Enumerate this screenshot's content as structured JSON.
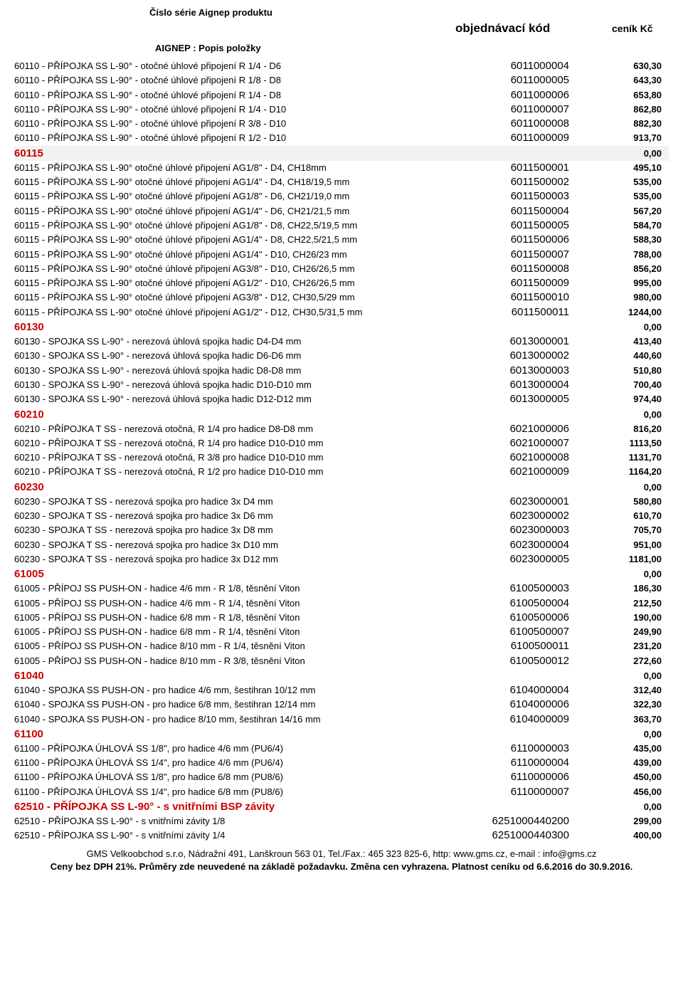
{
  "header": {
    "title1": "Číslo série Aignep produktu",
    "title3": "AIGNEP :  Popis položky",
    "obj_kod": "objednávací kód",
    "cenik": "ceník Kč"
  },
  "rows": [
    {
      "type": "row",
      "desc": "60110 - PŘÍPOJKA SS L-90° - otočné úhlové připojení R 1/4 - D6",
      "code": "6011000004",
      "price": "630,30"
    },
    {
      "type": "row",
      "desc": "60110 - PŘÍPOJKA SS L-90° - otočné úhlové připojení R 1/8 - D8",
      "code": "6011000005",
      "price": "643,30"
    },
    {
      "type": "row",
      "desc": "60110 - PŘÍPOJKA SS L-90° - otočné úhlové připojení R 1/4 - D8",
      "code": "6011000006",
      "price": "653,80"
    },
    {
      "type": "row",
      "desc": "60110 - PŘÍPOJKA SS L-90° - otočné úhlové připojení R 1/4 - D10",
      "code": "6011000007",
      "price": "862,80"
    },
    {
      "type": "row",
      "desc": "60110 - PŘÍPOJKA SS L-90° - otočné úhlové připojení R 3/8 - D10",
      "code": "6011000008",
      "price": "882,30"
    },
    {
      "type": "row",
      "desc": "60110 - PŘÍPOJKA SS L-90° - otočné úhlové připojení R 1/2 - D10",
      "code": "6011000009",
      "price": "913,70"
    },
    {
      "type": "section",
      "name": "60115",
      "price": "0,00",
      "red": true,
      "hl": true
    },
    {
      "type": "row",
      "desc": "60115 - PŘÍPOJKA SS L-90° otočné úhlové připojení AG1/8\" - D4, CH18mm",
      "code": "6011500001",
      "price": "495,10"
    },
    {
      "type": "row",
      "desc": "60115 - PŘÍPOJKA SS L-90° otočné úhlové připojení AG1/4\" - D4, CH18/19,5 mm",
      "code": "6011500002",
      "price": "535,00"
    },
    {
      "type": "row",
      "desc": "60115 - PŘÍPOJKA SS L-90° otočné úhlové připojení AG1/8\" - D6, CH21/19,0 mm",
      "code": "6011500003",
      "price": "535,00"
    },
    {
      "type": "row",
      "desc": "60115 - PŘÍPOJKA SS L-90° otočné úhlové připojení AG1/4\" - D6, CH21/21,5 mm",
      "code": "6011500004",
      "price": "567,20"
    },
    {
      "type": "row",
      "desc": "60115 - PŘÍPOJKA SS L-90° otočné úhlové připojení AG1/8\" - D8, CH22,5/19,5 mm",
      "code": "6011500005",
      "price": "584,70"
    },
    {
      "type": "row",
      "desc": "60115 - PŘÍPOJKA SS L-90° otočné úhlové připojení AG1/4\" - D8, CH22,5/21,5 mm",
      "code": "6011500006",
      "price": "588,30"
    },
    {
      "type": "row",
      "desc": "60115 - PŘÍPOJKA SS L-90° otočné úhlové připojení AG1/4\" - D10, CH26/23 mm",
      "code": "6011500007",
      "price": "788,00"
    },
    {
      "type": "row",
      "desc": "60115 - PŘÍPOJKA SS L-90° otočné úhlové připojení AG3/8\" - D10, CH26/26,5 mm",
      "code": "6011500008",
      "price": "856,20"
    },
    {
      "type": "row",
      "desc": "60115 - PŘÍPOJKA SS L-90° otočné úhlové připojení AG1/2\" - D10, CH26/26,5 mm",
      "code": "6011500009",
      "price": "995,00"
    },
    {
      "type": "row",
      "desc": "60115 - PŘÍPOJKA SS L-90° otočné úhlové připojení AG3/8\" - D12, CH30,5/29 mm",
      "code": "6011500010",
      "price": "980,00"
    },
    {
      "type": "row",
      "desc": "60115 - PŘÍPOJKA SS L-90° otočné úhlové připojení AG1/2\" - D12, CH30,5/31,5 mm",
      "code": "6011500011",
      "price": "1244,00"
    },
    {
      "type": "section",
      "name": "60130",
      "price": "0,00",
      "red": true
    },
    {
      "type": "row",
      "desc": "60130 - SPOJKA SS L-90° - nerezová úhlová spojka hadic D4-D4 mm",
      "code": "6013000001",
      "price": "413,40"
    },
    {
      "type": "row",
      "desc": "60130 - SPOJKA SS L-90° - nerezová úhlová spojka hadic D6-D6 mm",
      "code": "6013000002",
      "price": "440,60"
    },
    {
      "type": "row",
      "desc": "60130 - SPOJKA SS L-90° - nerezová úhlová spojka hadic D8-D8 mm",
      "code": "6013000003",
      "price": "510,80"
    },
    {
      "type": "row",
      "desc": "60130 - SPOJKA SS L-90° - nerezová úhlová spojka hadic D10-D10 mm",
      "code": "6013000004",
      "price": "700,40"
    },
    {
      "type": "row",
      "desc": "60130 - SPOJKA SS L-90° - nerezová úhlová spojka hadic D12-D12 mm",
      "code": "6013000005",
      "price": "974,40"
    },
    {
      "type": "section",
      "name": "60210",
      "price": "0,00",
      "red": true
    },
    {
      "type": "row",
      "desc": "60210 - PŘÍPOJKA T SS  - nerezová otočná, R 1/4 pro hadice D8-D8 mm",
      "code": "6021000006",
      "price": "816,20"
    },
    {
      "type": "row",
      "desc": "60210 - PŘÍPOJKA T SS  - nerezová otočná, R 1/4 pro hadice D10-D10 mm",
      "code": "6021000007",
      "price": "1113,50"
    },
    {
      "type": "row",
      "desc": "60210 - PŘÍPOJKA T SS  - nerezová otočná, R 3/8 pro hadice D10-D10 mm",
      "code": "6021000008",
      "price": "1131,70"
    },
    {
      "type": "row",
      "desc": "60210 - PŘÍPOJKA T SS  - nerezová otočná, R 1/2 pro hadice D10-D10 mm",
      "code": "6021000009",
      "price": "1164,20"
    },
    {
      "type": "section",
      "name": "60230",
      "price": "0,00",
      "red": true
    },
    {
      "type": "row",
      "desc": "60230 - SPOJKA T SS  - nerezová spojka pro hadice 3x D4 mm",
      "code": "6023000001",
      "price": "580,80"
    },
    {
      "type": "row",
      "desc": "60230 - SPOJKA T SS  - nerezová spojka pro hadice 3x D6 mm",
      "code": "6023000002",
      "price": "610,70"
    },
    {
      "type": "row",
      "desc": "60230 - SPOJKA T SS  - nerezová spojka pro hadice 3x D8 mm",
      "code": "6023000003",
      "price": "705,70"
    },
    {
      "type": "row",
      "desc": "60230 - SPOJKA T SS  - nerezová spojka pro hadice 3x D10 mm",
      "code": "6023000004",
      "price": "951,00"
    },
    {
      "type": "row",
      "desc": "60230 - SPOJKA T SS  - nerezová spojka pro hadice 3x D12 mm",
      "code": "6023000005",
      "price": "1181,00"
    },
    {
      "type": "section",
      "name": "61005",
      "price": "0,00",
      "red": true
    },
    {
      "type": "row",
      "desc": "61005 - PŘÍPOJ SS PUSH-ON - hadice 4/6 mm - R 1/8, těsnění Viton",
      "code": "6100500003",
      "price": "186,30"
    },
    {
      "type": "row",
      "desc": "61005 - PŘÍPOJ SS PUSH-ON - hadice 4/6 mm - R 1/4, těsnění Viton",
      "code": "6100500004",
      "price": "212,50"
    },
    {
      "type": "row",
      "desc": "61005 - PŘÍPOJ SS PUSH-ON - hadice 6/8 mm - R 1/8, těsnění Viton",
      "code": "6100500006",
      "price": "190,00"
    },
    {
      "type": "row",
      "desc": "61005 - PŘÍPOJ SS PUSH-ON - hadice 6/8 mm - R 1/4, těsnění Viton",
      "code": "6100500007",
      "price": "249,90"
    },
    {
      "type": "row",
      "desc": "61005 - PŘÍPOJ SS PUSH-ON - hadice 8/10 mm - R 1/4, těsnění Viton",
      "code": "6100500011",
      "price": "231,20"
    },
    {
      "type": "row",
      "desc": "61005 - PŘÍPOJ SS PUSH-ON - hadice 8/10 mm - R 3/8, těsnění Viton",
      "code": "6100500012",
      "price": "272,60"
    },
    {
      "type": "section",
      "name": "61040",
      "price": "0,00",
      "red": true
    },
    {
      "type": "row",
      "desc": "61040 - SPOJKA SS PUSH-ON - pro hadice 4/6 mm, šestihran 10/12 mm",
      "code": "6104000004",
      "price": "312,40"
    },
    {
      "type": "row",
      "desc": "61040 - SPOJKA SS PUSH-ON - pro hadice 6/8 mm, šestihran 12/14 mm",
      "code": "6104000006",
      "price": "322,30"
    },
    {
      "type": "row",
      "desc": "61040 - SPOJKA SS PUSH-ON - pro hadice 8/10 mm, šestihran 14/16 mm",
      "code": "6104000009",
      "price": "363,70"
    },
    {
      "type": "section",
      "name": "61100",
      "price": "0,00",
      "red": true
    },
    {
      "type": "row",
      "desc": "61100 - PŘÍPOJKA ÚHLOVÁ SS 1/8\", pro hadice 4/6 mm (PU6/4)",
      "code": "6110000003",
      "price": "435,00"
    },
    {
      "type": "row",
      "desc": "61100 - PŘÍPOJKA ÚHLOVÁ SS 1/4\", pro hadice 4/6 mm (PU6/4)",
      "code": "6110000004",
      "price": "439,00"
    },
    {
      "type": "row",
      "desc": "61100 - PŘÍPOJKA ÚHLOVÁ SS 1/8\", pro hadice 6/8 mm (PU8/6)",
      "code": "6110000006",
      "price": "450,00"
    },
    {
      "type": "row",
      "desc": "61100 - PŘÍPOJKA ÚHLOVÁ SS 1/4\", pro hadice 6/8 mm (PU8/6)",
      "code": "6110000007",
      "price": "456,00"
    },
    {
      "type": "section",
      "name": "62510 - PŘÍPOJKA SS L-90° - s vnitřními BSP závity",
      "price": "0,00",
      "red": true
    },
    {
      "type": "row",
      "desc": "62510 - PŘÍPOJKA SS L-90° - s vnitřními závity 1/8",
      "code": "6251000440200",
      "price": "299,00"
    },
    {
      "type": "row",
      "desc": "62510 - PŘÍPOJKA SS L-90° - s vnitřními závity 1/4",
      "code": "6251000440300",
      "price": "400,00"
    }
  ],
  "footer": {
    "line1": "GMS Velkoobchod s.r.o, Nádražní 491, Lanškroun 563 01, Tel./Fax.: 465 323 825-6, http: www.gms.cz, e-mail : info@gms.cz",
    "line2": "Ceny bez DPH 21%. Průměry zde neuvedené na základě požadavku. Změna cen vyhrazena. Platnost ceníku od 6.6.2016 do 30.9.2016."
  }
}
